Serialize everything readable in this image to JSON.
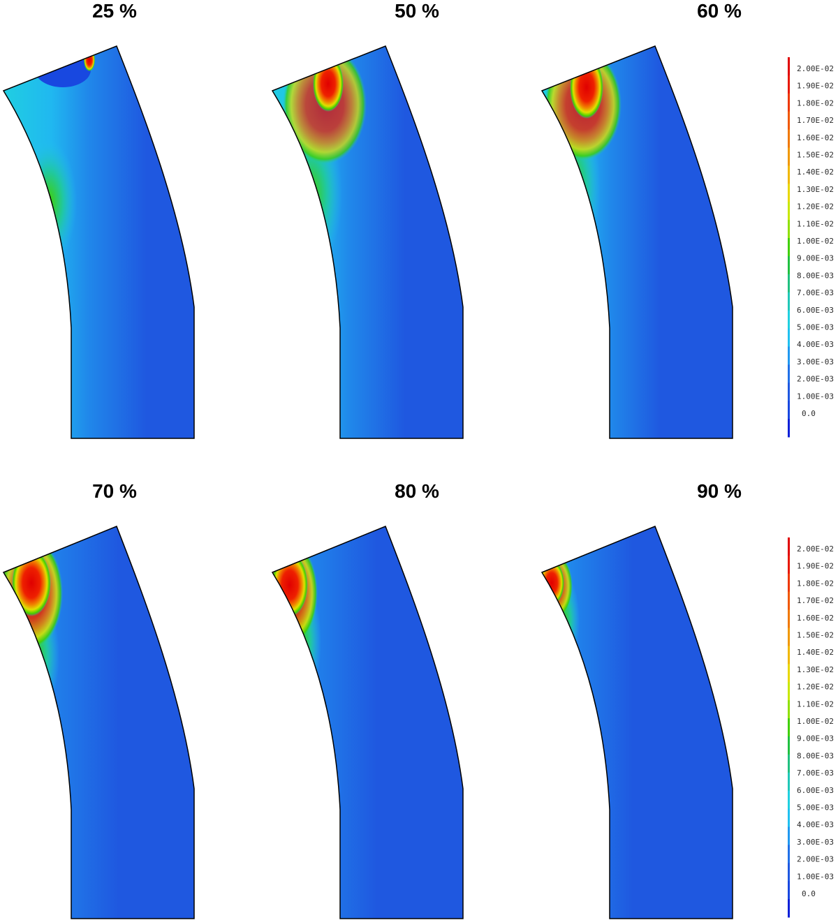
{
  "panels": [
    {
      "title": "25 %"
    },
    {
      "title": "50 %"
    },
    {
      "title": "60 %"
    },
    {
      "title": "70 %"
    },
    {
      "title": "80 %"
    },
    {
      "title": "90 %"
    }
  ],
  "legend": {
    "labels": [
      "2.00E-02",
      "1.90E-02",
      "1.80E-02",
      "1.70E-02",
      "1.60E-02",
      "1.50E-02",
      "1.40E-02",
      "1.30E-02",
      "1.20E-02",
      "1.10E-02",
      "1.00E-02",
      "9.00E-03",
      "8.00E-03",
      "7.00E-03",
      "6.00E-03",
      "5.00E-03",
      "4.00E-03",
      "3.00E-03",
      "2.00E-03",
      "1.00E-03",
      "0.0"
    ],
    "colors": [
      "#e00000",
      "#e81800",
      "#ee3800",
      "#f05800",
      "#f07800",
      "#f09800",
      "#f0b800",
      "#e8d800",
      "#c8e800",
      "#90e000",
      "#40d000",
      "#20c040",
      "#20c080",
      "#20c8b8",
      "#20d0e0",
      "#20c0f0",
      "#2098f0",
      "#2070e8",
      "#1f58e0",
      "#1848e0",
      "#0c20d8"
    ],
    "background": "#1f58e0"
  }
}
